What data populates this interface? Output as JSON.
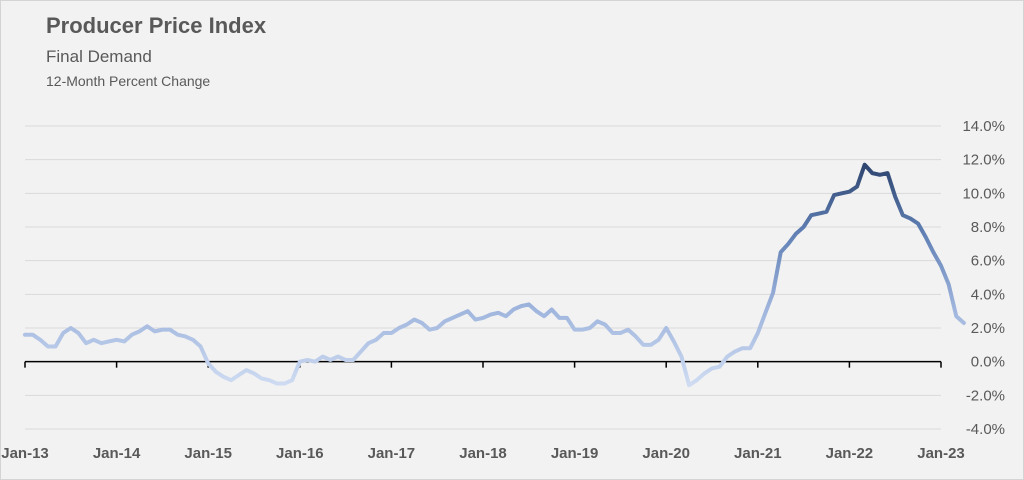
{
  "header": {
    "title": "Producer Price Index",
    "subtitle": "Final Demand",
    "subtitle2": "12-Month Percent Change"
  },
  "colors": {
    "background": "#f2f2f2",
    "gridline": "#d9d9d9",
    "axis": "#000000",
    "text": "#595959",
    "line_light": "#c9d7ef",
    "line_mid": "#8ea9d4",
    "line_dark": "#2f4670"
  },
  "chart_data": {
    "type": "line",
    "title": "Producer Price Index",
    "subtitle": "Final Demand",
    "ylabel": "12-Month Percent Change",
    "ylim": [
      -4.0,
      14.0
    ],
    "ytick_step": 2.0,
    "yticks": [
      "14.0%",
      "12.0%",
      "10.0%",
      "8.0%",
      "6.0%",
      "4.0%",
      "2.0%",
      "0.0%",
      "-2.0%",
      "-4.0%"
    ],
    "xticks": [
      "Jan-13",
      "Jan-14",
      "Jan-15",
      "Jan-16",
      "Jan-17",
      "Jan-18",
      "Jan-19",
      "Jan-20",
      "Jan-21",
      "Jan-22",
      "Jan-23"
    ],
    "grid": true,
    "legend": "none",
    "color_scale": "line color darkens as value rises",
    "series": [
      {
        "start": "Jan-13",
        "frequency": "monthly",
        "values": [
          1.6,
          1.6,
          1.3,
          0.9,
          0.9,
          1.7,
          2.0,
          1.7,
          1.1,
          1.3,
          1.1,
          1.2,
          1.3,
          1.2,
          1.6,
          1.8,
          2.1,
          1.8,
          1.9,
          1.9,
          1.6,
          1.5,
          1.3,
          0.9,
          -0.1,
          -0.6,
          -0.9,
          -1.1,
          -0.8,
          -0.5,
          -0.7,
          -1.0,
          -1.1,
          -1.3,
          -1.3,
          -1.1,
          0.0,
          0.1,
          0.0,
          0.3,
          0.1,
          0.3,
          0.1,
          0.1,
          0.6,
          1.1,
          1.3,
          1.7,
          1.7,
          2.0,
          2.2,
          2.5,
          2.3,
          1.9,
          2.0,
          2.4,
          2.6,
          2.8,
          3.0,
          2.5,
          2.6,
          2.8,
          2.9,
          2.7,
          3.1,
          3.3,
          3.4,
          3.0,
          2.7,
          3.1,
          2.6,
          2.6,
          1.9,
          1.9,
          2.0,
          2.4,
          2.2,
          1.7,
          1.7,
          1.9,
          1.5,
          1.0,
          1.0,
          1.3,
          2.0,
          1.2,
          0.3,
          -1.4,
          -1.1,
          -0.7,
          -0.4,
          -0.3,
          0.3,
          0.6,
          0.8,
          0.8,
          1.7,
          2.9,
          4.1,
          6.5,
          7.0,
          7.6,
          8.0,
          8.7,
          8.8,
          8.9,
          9.9,
          10.0,
          10.1,
          10.4,
          11.7,
          11.2,
          11.1,
          11.2,
          9.8,
          8.7,
          8.5,
          8.2,
          7.4,
          6.5,
          5.7,
          4.6,
          2.7,
          2.3
        ]
      }
    ]
  }
}
